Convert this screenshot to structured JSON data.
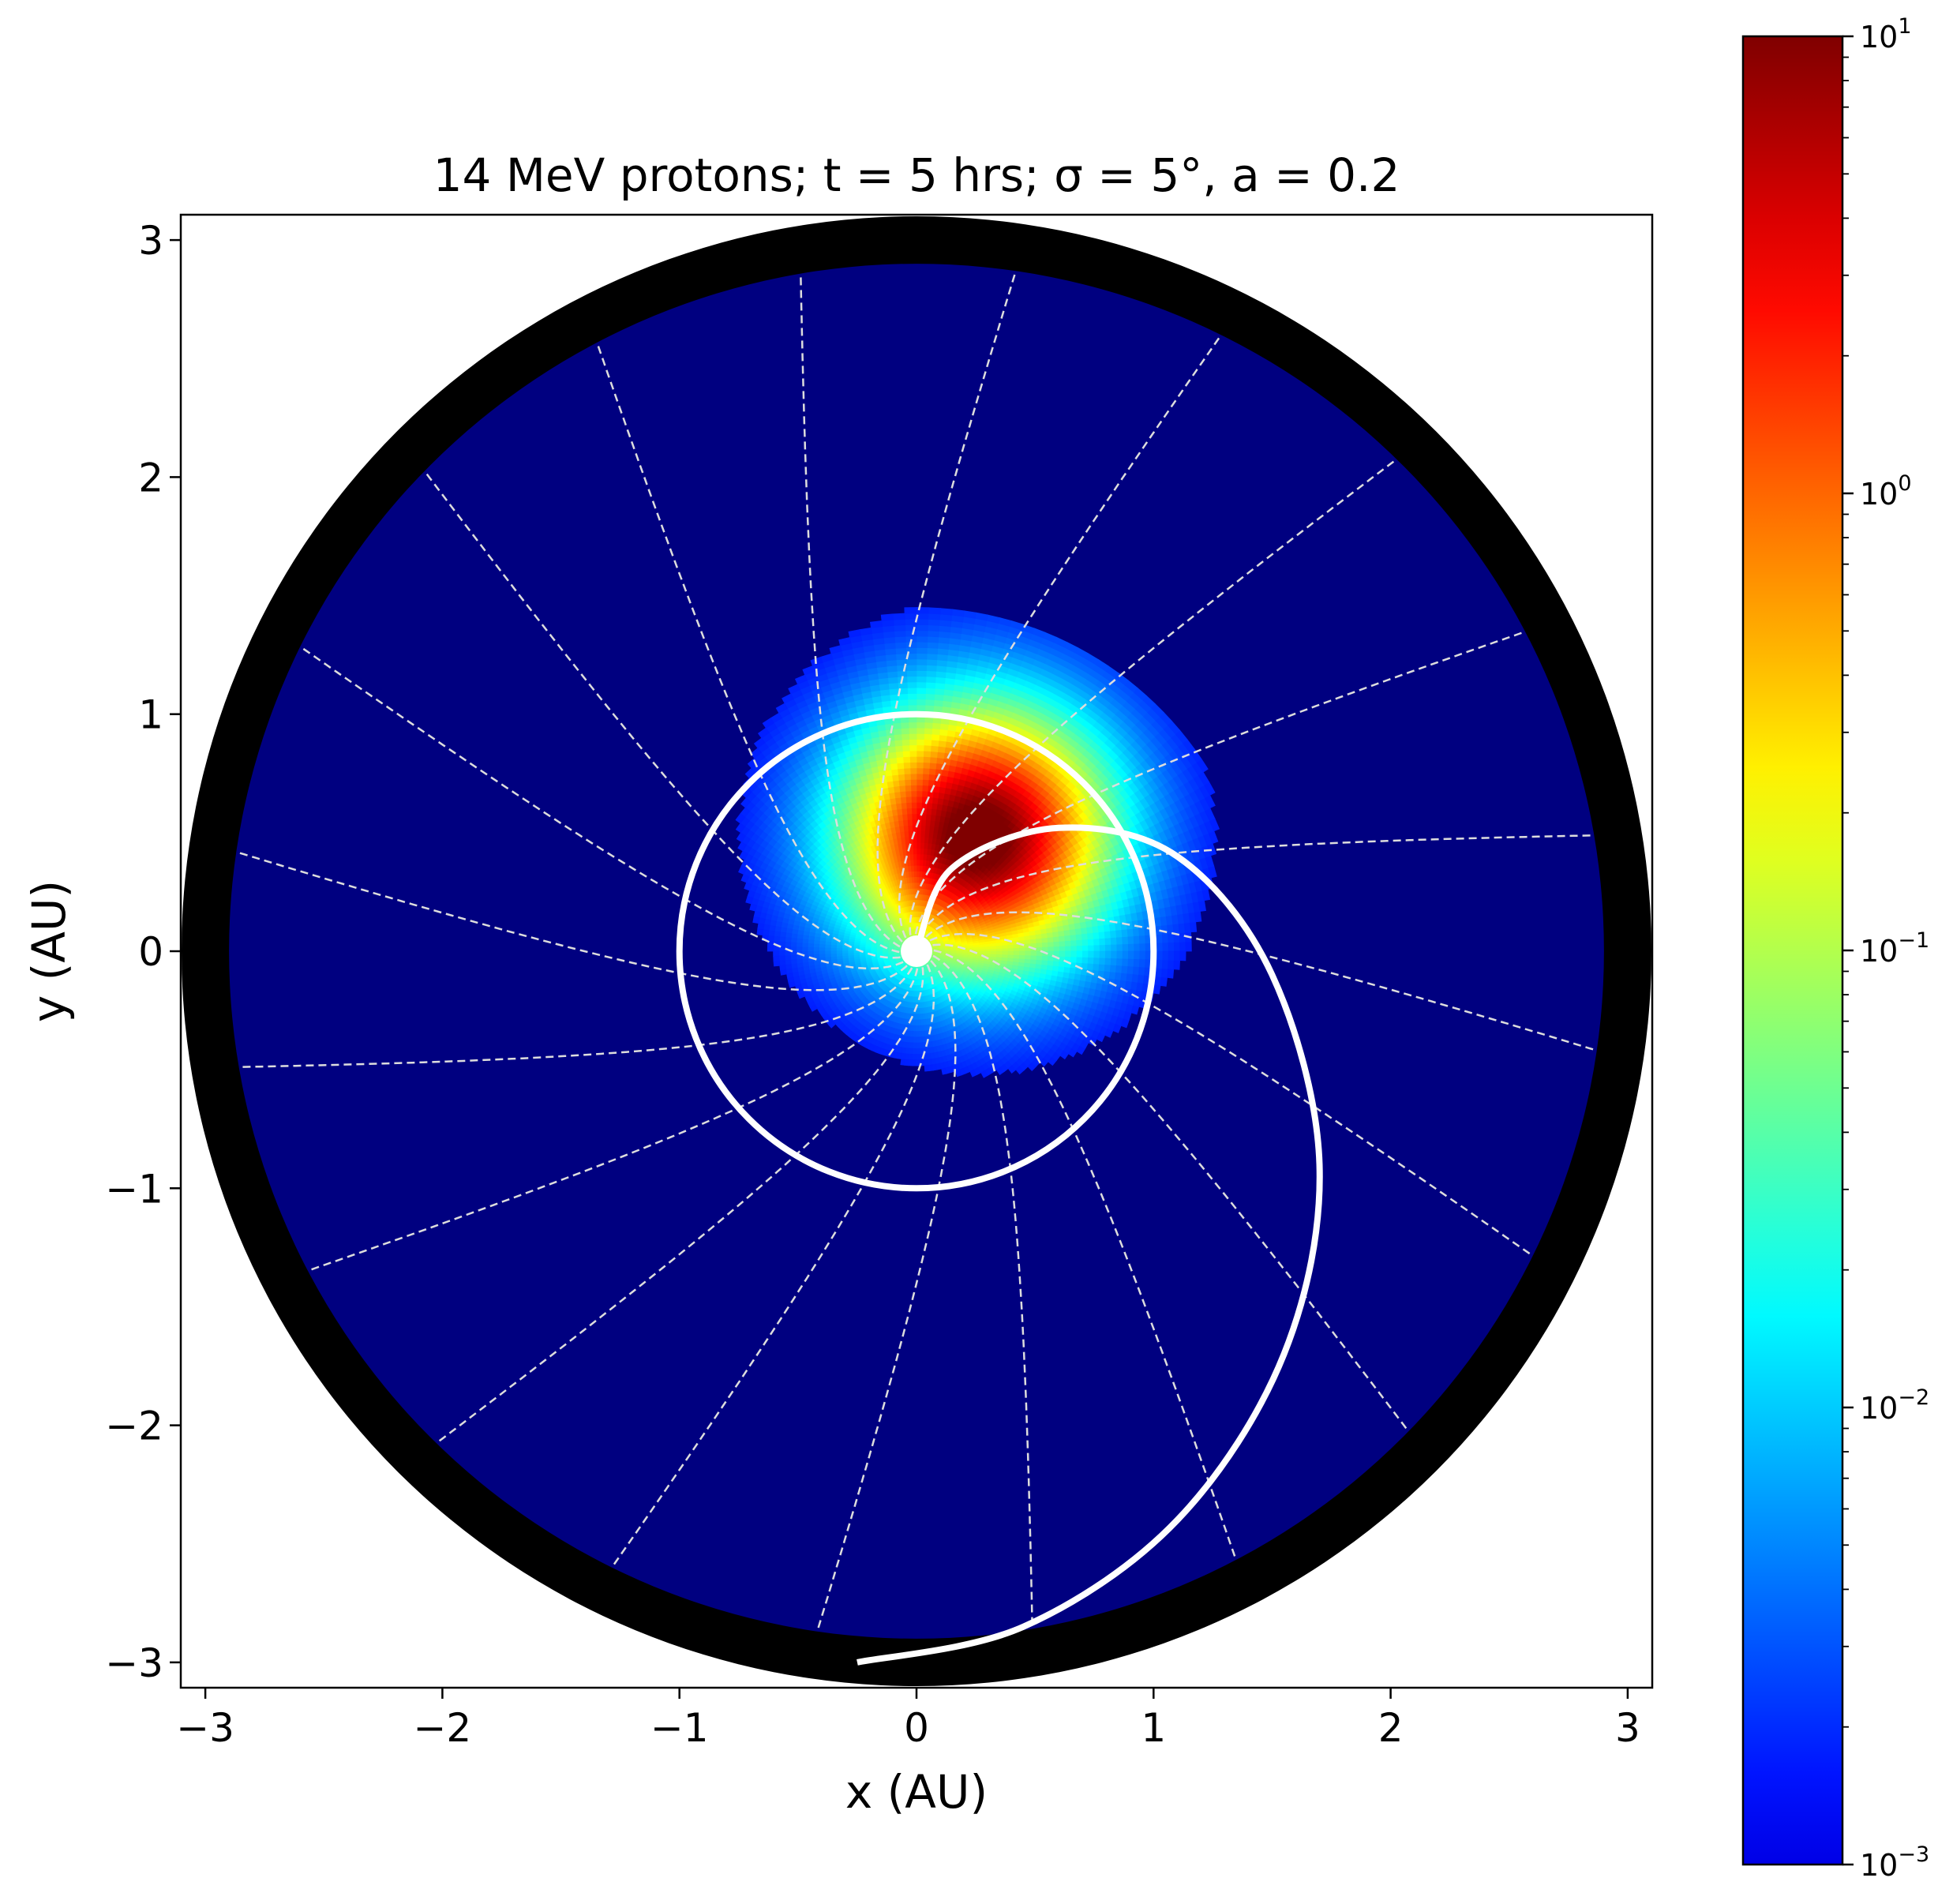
{
  "chart_data": {
    "type": "heatmap",
    "title": "14 MeV protons; t = 5 hrs; σ = 5°, a = 0.2",
    "xlabel": "x (AU)",
    "ylabel": "y (AU)",
    "xlim": [
      -3.1,
      3.1
    ],
    "ylim": [
      -3.1,
      3.1
    ],
    "xticks": [
      -3,
      -2,
      -1,
      0,
      1,
      2,
      3
    ],
    "yticks": [
      -3,
      -2,
      -1,
      0,
      1,
      2,
      3
    ],
    "grid": false,
    "colormap": "jet",
    "colorbar": {
      "scale": "log",
      "range": [
        0.001,
        10
      ],
      "ticks": [
        {
          "value": 10,
          "base": "10",
          "exp": "1"
        },
        {
          "value": 1,
          "base": "10",
          "exp": "0"
        },
        {
          "value": 0.1,
          "base": "10",
          "exp": "−1"
        },
        {
          "value": 0.01,
          "base": "10",
          "exp": "−2"
        },
        {
          "value": 0.001,
          "base": "10",
          "exp": "−3"
        }
      ]
    },
    "domain_outer_radius_au": 3.1,
    "domain_inner_radius_au": 2.9,
    "peak": {
      "r_au": 0.55,
      "theta_deg": 62,
      "value": 10
    },
    "overlays": {
      "circle_radius_au": 1.0,
      "spiral": {
        "start": [
          0,
          0
        ],
        "end": [
          -0.25,
          -3.0
        ],
        "max_x_au": 1.7,
        "top_y_au": 0.52
      },
      "radial_field_lines": 20,
      "field_line_style": "dashed"
    }
  },
  "colors": {
    "background": "#000080",
    "ring": "#000000",
    "overlay": "#ffffff",
    "field_lines": "#dddddd"
  }
}
